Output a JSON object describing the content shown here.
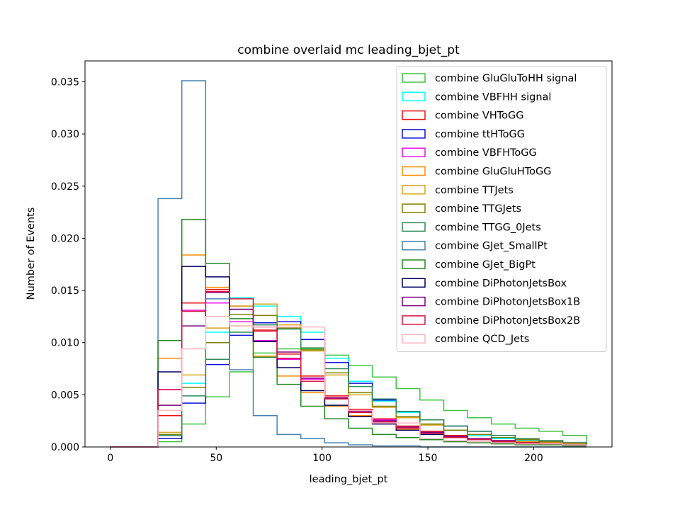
{
  "chart_data": {
    "type": "step-histogram",
    "title": "combine overlaid mc leading_bjet_pt",
    "xlabel": "leading_bjet_pt",
    "ylabel": "Number of Events",
    "xlim": [
      -12,
      237
    ],
    "ylim": [
      0,
      0.037
    ],
    "x_ticks": [
      0,
      50,
      100,
      150,
      200
    ],
    "x_tick_labels": [
      "0",
      "50",
      "100",
      "150",
      "200"
    ],
    "y_ticks": [
      0,
      0.005,
      0.01,
      0.015,
      0.02,
      0.025,
      0.03,
      0.035
    ],
    "y_tick_labels": [
      "0.000",
      "0.005",
      "0.010",
      "0.015",
      "0.020",
      "0.025",
      "0.030",
      "0.035"
    ],
    "bin_edges": [
      0,
      11.25,
      22.5,
      33.75,
      45,
      56.25,
      67.5,
      78.75,
      90,
      101.25,
      112.5,
      123.75,
      135,
      146.25,
      157.5,
      168.75,
      180,
      191.25,
      202.5,
      213.75,
      225
    ],
    "legend_position": "upper right",
    "grid": false,
    "series": [
      {
        "name": "combine GluGluToHH signal",
        "color": "#3fc63f",
        "values": [
          0,
          0,
          0.0005,
          0.0022,
          0.0048,
          0.0072,
          0.009,
          0.0094,
          0.0094,
          0.0088,
          0.0078,
          0.0067,
          0.0056,
          0.0045,
          0.0035,
          0.0028,
          0.0022,
          0.0018,
          0.0015,
          0.0011
        ]
      },
      {
        "name": "combine VBFHH signal",
        "color": "#00ffff",
        "values": [
          0,
          0,
          0.0012,
          0.0061,
          0.011,
          0.0143,
          0.0135,
          0.0125,
          0.011,
          0.0085,
          0.0063,
          0.0044,
          0.0033,
          0.0022,
          0.0016,
          0.0011,
          0.0008,
          0.0006,
          0.0004,
          0.0003
        ]
      },
      {
        "name": "combine VHToGG",
        "color": "#ee1111",
        "values": [
          0,
          0,
          0.003,
          0.0138,
          0.0151,
          0.0135,
          0.0112,
          0.0089,
          0.0068,
          0.0049,
          0.0036,
          0.0027,
          0.002,
          0.0015,
          0.0011,
          0.0008,
          0.0006,
          0.0005,
          0.0004,
          0.0003
        ]
      },
      {
        "name": "combine ttHToGG",
        "color": "#1111dd",
        "values": [
          0,
          0,
          0.0008,
          0.0042,
          0.0079,
          0.0107,
          0.0119,
          0.012,
          0.0103,
          0.0081,
          0.0061,
          0.0045,
          0.0034,
          0.0026,
          0.002,
          0.0015,
          0.0011,
          0.0008,
          0.0006,
          0.0004
        ]
      },
      {
        "name": "combine VBFHToGG",
        "color": "#ee11ee",
        "values": [
          0,
          0,
          0.0055,
          0.0131,
          0.0138,
          0.012,
          0.0102,
          0.0084,
          0.0065,
          0.0048,
          0.0035,
          0.0026,
          0.0019,
          0.0014,
          0.001,
          0.0008,
          0.0006,
          0.0005,
          0.0004,
          0.0003
        ]
      },
      {
        "name": "combine GluGluHToGG",
        "color": "#ff8c00",
        "values": [
          0,
          0,
          0.0085,
          0.0184,
          0.0153,
          0.0116,
          0.0087,
          0.0068,
          0.0052,
          0.0039,
          0.003,
          0.0023,
          0.0017,
          0.0013,
          0.001,
          0.0008,
          0.0006,
          0.0005,
          0.0004,
          0.0003
        ]
      },
      {
        "name": "combine TTJets",
        "color": "#daa520",
        "values": [
          0,
          0,
          0.0014,
          0.0069,
          0.0114,
          0.0135,
          0.0137,
          0.0117,
          0.0092,
          0.0069,
          0.005,
          0.0038,
          0.0028,
          0.0021,
          0.0016,
          0.0012,
          0.0009,
          0.0007,
          0.0005,
          0.0004
        ]
      },
      {
        "name": "combine TTGJets",
        "color": "#808000",
        "values": [
          0,
          0,
          0.0012,
          0.0057,
          0.01,
          0.0127,
          0.0126,
          0.0114,
          0.0093,
          0.0071,
          0.0052,
          0.0039,
          0.0029,
          0.0022,
          0.0016,
          0.0012,
          0.0009,
          0.0007,
          0.0005,
          0.0004
        ]
      },
      {
        "name": "combine TTGG_0Jets",
        "color": "#2e8b57",
        "values": [
          0,
          0,
          0.0011,
          0.0049,
          0.0084,
          0.011,
          0.0117,
          0.0113,
          0.0095,
          0.0075,
          0.0058,
          0.0046,
          0.0034,
          0.0026,
          0.002,
          0.0015,
          0.0011,
          0.0008,
          0.0006,
          0.0004
        ]
      },
      {
        "name": "combine GJet_SmallPt",
        "color": "#4682b4",
        "values": [
          0,
          0,
          0.0238,
          0.0351,
          0.0142,
          0.0074,
          0.003,
          0.0012,
          0.0008,
          0.0004,
          0.0002,
          0.0001,
          0.0001,
          0,
          0,
          0,
          0,
          0,
          0,
          0
        ]
      },
      {
        "name": "combine GJet_BigPt",
        "color": "#228b22",
        "values": [
          0,
          0,
          0.0102,
          0.0218,
          0.0176,
          0.0123,
          0.0086,
          0.006,
          0.0039,
          0.0027,
          0.0018,
          0.0012,
          0.0009,
          0.0007,
          0.0005,
          0.0004,
          0.0003,
          0.0002,
          0.0002,
          0.0001
        ]
      },
      {
        "name": "combine DiPhotonJetsBox",
        "color": "#000066",
        "values": [
          0,
          0,
          0.0072,
          0.0173,
          0.0163,
          0.0132,
          0.0101,
          0.0076,
          0.0054,
          0.004,
          0.0029,
          0.0022,
          0.0016,
          0.0012,
          0.0009,
          0.0007,
          0.0005,
          0.0004,
          0.0003,
          0.0002
        ]
      },
      {
        "name": "combine DiPhotonJetsBox1B",
        "color": "#800080",
        "values": [
          0,
          0,
          0.004,
          0.0116,
          0.0148,
          0.0132,
          0.0115,
          0.0091,
          0.0066,
          0.0047,
          0.0034,
          0.0025,
          0.0019,
          0.0014,
          0.001,
          0.0008,
          0.0006,
          0.0004,
          0.0003,
          0.0002
        ]
      },
      {
        "name": "combine DiPhotonJetsBox2B",
        "color": "#dc143c",
        "values": [
          0,
          0,
          0.0055,
          0.013,
          0.0149,
          0.0142,
          0.0111,
          0.0085,
          0.0063,
          0.0046,
          0.0033,
          0.0024,
          0.0018,
          0.0013,
          0.0009,
          0.0007,
          0.0005,
          0.0004,
          0.0003,
          0.0002
        ]
      },
      {
        "name": "combine QCD_Jets",
        "color": "#ffb6c1",
        "values": [
          0,
          0,
          0.0035,
          0.0094,
          0.0125,
          0.0116,
          0.0115,
          0.0115,
          0.0115,
          0.0048,
          0.0035,
          0.0023,
          0.0023,
          0.0008,
          0.0006,
          0.0005,
          0.0004,
          0.0003,
          0.0003,
          0.0002
        ]
      }
    ]
  }
}
